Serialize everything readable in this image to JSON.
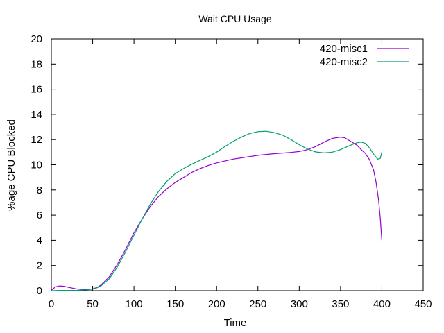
{
  "chart_data": {
    "type": "line",
    "title": "Wait CPU Usage",
    "xlabel": "Time",
    "ylabel": "%age CPU Blocked",
    "xlim": [
      0,
      450
    ],
    "ylim": [
      0,
      20
    ],
    "xticks": [
      0,
      50,
      100,
      150,
      200,
      250,
      300,
      350,
      400,
      450
    ],
    "yticks": [
      0,
      2,
      4,
      6,
      8,
      10,
      12,
      14,
      16,
      18,
      20
    ],
    "grid": false,
    "legend_position": "top-right",
    "series": [
      {
        "name": "420-misc1",
        "color": "#9400d3",
        "points": [
          [
            0,
            0.05
          ],
          [
            5,
            0.3
          ],
          [
            10,
            0.38
          ],
          [
            15,
            0.35
          ],
          [
            20,
            0.28
          ],
          [
            30,
            0.15
          ],
          [
            40,
            0.08
          ],
          [
            45,
            0.08
          ],
          [
            50,
            0.15
          ],
          [
            55,
            0.25
          ],
          [
            60,
            0.45
          ],
          [
            70,
            1.1
          ],
          [
            80,
            2.1
          ],
          [
            90,
            3.3
          ],
          [
            100,
            4.6
          ],
          [
            110,
            5.7
          ],
          [
            120,
            6.7
          ],
          [
            130,
            7.5
          ],
          [
            140,
            8.1
          ],
          [
            150,
            8.6
          ],
          [
            160,
            9.0
          ],
          [
            170,
            9.4
          ],
          [
            180,
            9.7
          ],
          [
            190,
            9.95
          ],
          [
            200,
            10.15
          ],
          [
            210,
            10.3
          ],
          [
            220,
            10.45
          ],
          [
            230,
            10.55
          ],
          [
            240,
            10.65
          ],
          [
            250,
            10.75
          ],
          [
            260,
            10.82
          ],
          [
            270,
            10.88
          ],
          [
            280,
            10.93
          ],
          [
            290,
            10.98
          ],
          [
            300,
            11.05
          ],
          [
            310,
            11.2
          ],
          [
            320,
            11.45
          ],
          [
            330,
            11.8
          ],
          [
            340,
            12.1
          ],
          [
            350,
            12.2
          ],
          [
            355,
            12.15
          ],
          [
            360,
            11.95
          ],
          [
            370,
            11.55
          ],
          [
            375,
            11.2
          ],
          [
            380,
            10.9
          ],
          [
            385,
            10.4
          ],
          [
            390,
            9.6
          ],
          [
            393,
            8.6
          ],
          [
            396,
            7.2
          ],
          [
            398,
            5.8
          ],
          [
            400,
            4.0
          ]
        ]
      },
      {
        "name": "420-misc2",
        "color": "#009e73",
        "points": [
          [
            0,
            0.0
          ],
          [
            10,
            0.02
          ],
          [
            20,
            0.02
          ],
          [
            30,
            0.03
          ],
          [
            40,
            0.05
          ],
          [
            50,
            0.12
          ],
          [
            55,
            0.22
          ],
          [
            60,
            0.38
          ],
          [
            70,
            0.95
          ],
          [
            80,
            1.9
          ],
          [
            90,
            3.1
          ],
          [
            100,
            4.4
          ],
          [
            110,
            5.7
          ],
          [
            120,
            6.9
          ],
          [
            130,
            7.9
          ],
          [
            140,
            8.7
          ],
          [
            150,
            9.3
          ],
          [
            160,
            9.7
          ],
          [
            170,
            10.05
          ],
          [
            180,
            10.35
          ],
          [
            190,
            10.65
          ],
          [
            200,
            11.0
          ],
          [
            210,
            11.45
          ],
          [
            220,
            11.85
          ],
          [
            230,
            12.2
          ],
          [
            240,
            12.48
          ],
          [
            250,
            12.63
          ],
          [
            260,
            12.66
          ],
          [
            270,
            12.55
          ],
          [
            280,
            12.35
          ],
          [
            290,
            12.0
          ],
          [
            300,
            11.6
          ],
          [
            310,
            11.25
          ],
          [
            320,
            11.02
          ],
          [
            330,
            10.95
          ],
          [
            340,
            11.0
          ],
          [
            350,
            11.2
          ],
          [
            360,
            11.5
          ],
          [
            370,
            11.75
          ],
          [
            375,
            11.8
          ],
          [
            380,
            11.7
          ],
          [
            385,
            11.35
          ],
          [
            390,
            10.85
          ],
          [
            395,
            10.45
          ],
          [
            398,
            10.5
          ],
          [
            400,
            11.0
          ]
        ]
      }
    ]
  }
}
